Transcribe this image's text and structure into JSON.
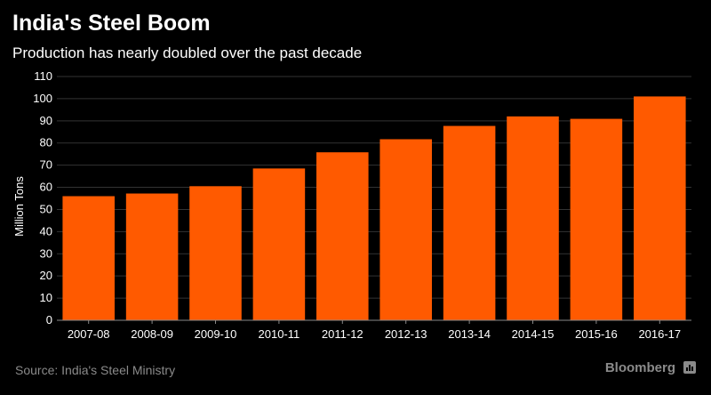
{
  "chart_data": {
    "type": "bar",
    "title": "India's Steel Boom",
    "subtitle": "Production has nearly doubled over the past decade",
    "ylabel": "Million Tons",
    "xlabel": "",
    "categories": [
      "2007-08",
      "2008-09",
      "2009-10",
      "2010-11",
      "2011-12",
      "2012-13",
      "2013-14",
      "2014-15",
      "2015-16",
      "2016-17"
    ],
    "values": [
      56,
      57.2,
      60.5,
      68.5,
      75.8,
      81.7,
      87.7,
      92,
      90.9,
      101
    ],
    "ylim": [
      0,
      110
    ],
    "yticks": [
      0,
      10,
      20,
      30,
      40,
      50,
      60,
      70,
      80,
      90,
      100,
      110
    ],
    "grid": true,
    "bar_color": "#ff5a00"
  },
  "footer": {
    "source": "Source: India's Steel Ministry",
    "brand": "Bloomberg"
  },
  "colors": {
    "background": "#000000",
    "grid": "#333333",
    "axis_text": "#ffffff",
    "footer_text": "#8a8a8a"
  }
}
